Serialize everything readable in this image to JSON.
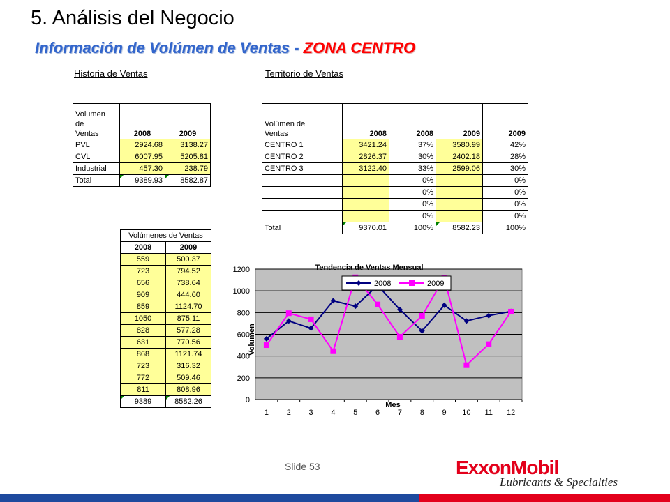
{
  "header": {
    "title": "5.  Análisis del Negocio",
    "subtitle_main": "Información de Volúmen de Ventas - ",
    "subtitle_zone": "ZONA  CENTRO"
  },
  "historia": {
    "heading": "Historia de Ventas",
    "head_l1": "Volumen",
    "head_l2": "de",
    "head_l3": "Ventas",
    "col1": "2008",
    "col2": "2009",
    "rows": [
      {
        "label": "PVL",
        "v2008": "2924.68",
        "v2009": "3138.27"
      },
      {
        "label": "CVL",
        "v2008": "6007.95",
        "v2009": "5205.81"
      },
      {
        "label": "Industrial",
        "v2008": "457.30",
        "v2009": "238.79"
      }
    ],
    "total": {
      "label": "Total",
      "v2008": "9389.93",
      "v2009": "8582.87"
    }
  },
  "territorio": {
    "heading": "Territorio de Ventas",
    "head_l1": "Volúmen de",
    "head_l2": "Ventas",
    "cols": [
      "2008",
      "2008",
      "2009",
      "2009"
    ],
    "rows": [
      {
        "label": "CENTRO  1",
        "v1": "3421.24",
        "p1": "37%",
        "v2": "3580.99",
        "p2": "42%"
      },
      {
        "label": "CENTRO  2",
        "v1": "2826.37",
        "p1": "30%",
        "v2": "2402.18",
        "p2": "28%"
      },
      {
        "label": "CENTRO  3",
        "v1": "3122.40",
        "p1": "33%",
        "v2": "2599.06",
        "p2": "30%"
      },
      {
        "label": "",
        "v1": "",
        "p1": "0%",
        "v2": "",
        "p2": "0%"
      },
      {
        "label": "",
        "v1": "",
        "p1": "0%",
        "v2": "",
        "p2": "0%"
      },
      {
        "label": "",
        "v1": "",
        "p1": "0%",
        "v2": "",
        "p2": "0%"
      },
      {
        "label": "",
        "v1": "",
        "p1": "0%",
        "v2": "",
        "p2": "0%"
      }
    ],
    "total": {
      "label": "Total",
      "v1": "9370.01",
      "p1": "100%",
      "v2": "8582.23",
      "p2": "100%"
    }
  },
  "mensual": {
    "heading": "Volúmenes de Ventas",
    "col1": "2008",
    "col2": "2009",
    "rows": [
      [
        "559",
        "500.37"
      ],
      [
        "723",
        "794.52"
      ],
      [
        "656",
        "738.64"
      ],
      [
        "909",
        "444.60"
      ],
      [
        "859",
        "1124.70"
      ],
      [
        "1050",
        "875.11"
      ],
      [
        "828",
        "577.28"
      ],
      [
        "631",
        "770.56"
      ],
      [
        "868",
        "1121.74"
      ],
      [
        "723",
        "316.32"
      ],
      [
        "772",
        "509.46"
      ],
      [
        "811",
        "808.96"
      ]
    ],
    "total": [
      "9389",
      "8582.26"
    ]
  },
  "chart_data": {
    "type": "line",
    "title": "Tendencia de Ventas Mensual",
    "xlabel": "Mes",
    "ylabel": "Volumen",
    "categories": [
      "1",
      "2",
      "3",
      "4",
      "5",
      "6",
      "7",
      "8",
      "9",
      "10",
      "11",
      "12"
    ],
    "ylim": [
      0,
      1200
    ],
    "yticks": [
      0,
      200,
      400,
      600,
      800,
      1000,
      1200
    ],
    "grid": true,
    "legend_position": "top",
    "series": [
      {
        "name": "2008",
        "color": "#000080",
        "marker": "diamond",
        "values": [
          559,
          723,
          656,
          909,
          859,
          1050,
          828,
          631,
          868,
          723,
          772,
          811
        ]
      },
      {
        "name": "2009",
        "color": "#ff00ff",
        "marker": "square",
        "values": [
          500.37,
          794.52,
          738.64,
          444.6,
          1124.7,
          875.11,
          577.28,
          770.56,
          1121.74,
          316.32,
          509.46,
          808.96
        ]
      }
    ]
  },
  "footer": {
    "slide": "Slide 53",
    "logo": "ExxonMobil",
    "logo_sub": "Lubricants & Specialties"
  },
  "colors": {
    "cell_fill": "#ffff99",
    "plot_bg": "#c0c0c0",
    "brand_red": "#e3001b",
    "brand_blue": "#1e4a9e"
  }
}
